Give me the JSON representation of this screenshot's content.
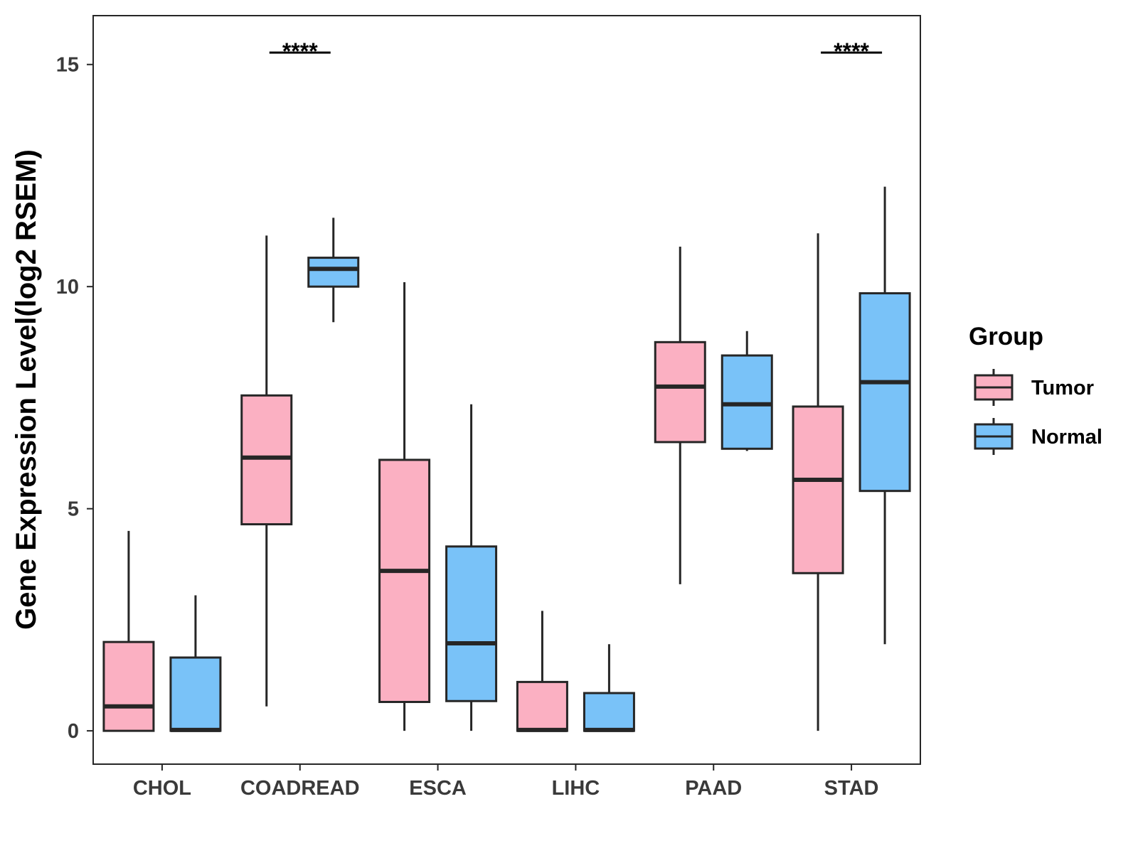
{
  "chart_data": {
    "type": "boxplot",
    "title": "",
    "xlabel": "",
    "ylabel": "Gene Expression Level(log2 RSEM)",
    "ylim": [
      -0.75,
      16.1
    ],
    "yticks": [
      0,
      5,
      10,
      15
    ],
    "ytick_labels": [
      "0",
      "5",
      "10",
      "15"
    ],
    "grid": false,
    "categories": [
      "CHOL",
      "COADREAD",
      "ESCA",
      "LIHC",
      "PAAD",
      "STAD"
    ],
    "legend": {
      "title": "Group",
      "position": "right",
      "entries": [
        "Tumor",
        "Normal"
      ]
    },
    "colors": {
      "Tumor": "#fbb0c2",
      "Normal": "#79c2f8",
      "outline": "#262626"
    },
    "series": [
      {
        "name": "Tumor",
        "boxes": [
          {
            "whisker_low": 0.0,
            "q1": 0.0,
            "median": 0.55,
            "q3": 2.0,
            "whisker_high": 4.5
          },
          {
            "whisker_low": 0.55,
            "q1": 4.65,
            "median": 6.15,
            "q3": 7.55,
            "whisker_high": 11.15
          },
          {
            "whisker_low": 0.0,
            "q1": 0.65,
            "median": 3.6,
            "q3": 6.1,
            "whisker_high": 10.1
          },
          {
            "whisker_low": 0.0,
            "q1": 0.0,
            "median": 0.02,
            "q3": 1.1,
            "whisker_high": 2.7
          },
          {
            "whisker_low": 3.3,
            "q1": 6.5,
            "median": 7.75,
            "q3": 8.75,
            "whisker_high": 10.9
          },
          {
            "whisker_low": 0.0,
            "q1": 3.55,
            "median": 5.65,
            "q3": 7.3,
            "whisker_high": 11.2
          }
        ]
      },
      {
        "name": "Normal",
        "boxes": [
          {
            "whisker_low": 0.0,
            "q1": 0.0,
            "median": 0.02,
            "q3": 1.65,
            "whisker_high": 3.05
          },
          {
            "whisker_low": 9.2,
            "q1": 10.0,
            "median": 10.4,
            "q3": 10.65,
            "whisker_high": 11.55
          },
          {
            "whisker_low": 0.0,
            "q1": 0.67,
            "median": 1.97,
            "q3": 4.15,
            "whisker_high": 7.35
          },
          {
            "whisker_low": 0.0,
            "q1": 0.0,
            "median": 0.02,
            "q3": 0.85,
            "whisker_high": 1.95
          },
          {
            "whisker_low": 6.3,
            "q1": 6.35,
            "median": 7.35,
            "q3": 8.45,
            "whisker_high": 9.0
          },
          {
            "whisker_low": 1.95,
            "q1": 5.4,
            "median": 7.85,
            "q3": 9.85,
            "whisker_high": 12.25
          }
        ]
      }
    ],
    "significance": [
      {
        "category": "CHOL",
        "label": ""
      },
      {
        "category": "COADREAD",
        "label": "****"
      },
      {
        "category": "ESCA",
        "label": ""
      },
      {
        "category": "LIHC",
        "label": ""
      },
      {
        "category": "PAAD",
        "label": ""
      },
      {
        "category": "STAD",
        "label": "****"
      }
    ]
  }
}
